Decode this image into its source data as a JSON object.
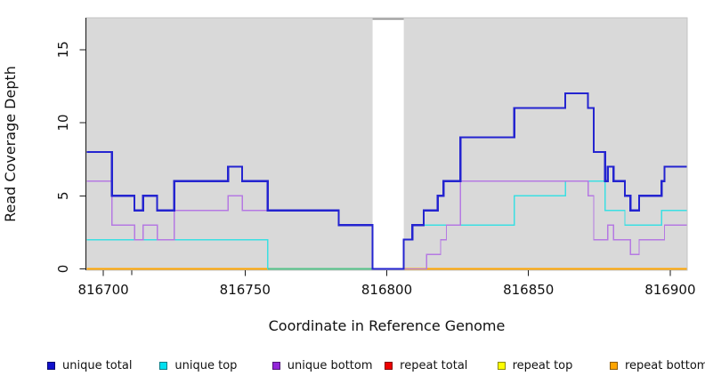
{
  "chart_data": {
    "type": "line",
    "step_mode": "post",
    "title": "",
    "xlabel": "Coordinate in Reference Genome",
    "ylabel": "Read Coverage Depth",
    "xlim": [
      816694,
      816906
    ],
    "ylim": [
      0,
      17.2
    ],
    "x_ticks": [
      "816700",
      "816750",
      "816800",
      "816850",
      "816900"
    ],
    "y_ticks": [
      "0",
      "5",
      "10",
      "15"
    ],
    "grid": false,
    "panel_background": "#D9D9D9",
    "panel_border_color": "#C3C3C3",
    "axis_color": "#1A1A1A",
    "gap_region": {
      "from": 816795,
      "to": 816806,
      "color": "#FFFFFF",
      "top_edge_color": "#909090"
    },
    "extra_gray_tick": {
      "x": 816710,
      "color": "#8C8C8C"
    },
    "baseline_overlay": {
      "from": 816758,
      "to": 816795,
      "y": 0,
      "color": "#55C389"
    },
    "draw_order": [
      "repeat total",
      "repeat top",
      "repeat bottom",
      "unique top",
      "unique bottom",
      "unique total"
    ],
    "series": [
      {
        "name": "unique total",
        "color": "#2424D0",
        "legend_color": "#1111CC",
        "line_width": 2.2,
        "steps": [
          [
            816694,
            8
          ],
          [
            816703,
            5
          ],
          [
            816711,
            4
          ],
          [
            816714,
            5
          ],
          [
            816719,
            4
          ],
          [
            816725,
            6
          ],
          [
            816744,
            7
          ],
          [
            816749,
            6
          ],
          [
            816758,
            4
          ],
          [
            816783,
            3
          ],
          [
            816795,
            0
          ],
          [
            816806,
            2
          ],
          [
            816809,
            3
          ],
          [
            816813,
            4
          ],
          [
            816818,
            5
          ],
          [
            816820,
            6
          ],
          [
            816826,
            9
          ],
          [
            816845,
            11
          ],
          [
            816863,
            12
          ],
          [
            816871,
            11
          ],
          [
            816873,
            8
          ],
          [
            816877,
            6
          ],
          [
            816878,
            7
          ],
          [
            816880,
            6
          ],
          [
            816884,
            5
          ],
          [
            816886,
            4
          ],
          [
            816889,
            5
          ],
          [
            816897,
            6
          ],
          [
            816898,
            7
          ]
        ]
      },
      {
        "name": "unique top",
        "color": "#3BDFE2",
        "legend_color": "#00E0F0",
        "line_width": 1.3,
        "steps": [
          [
            816694,
            2
          ],
          [
            816758,
            0
          ],
          [
            816806,
            2
          ],
          [
            816809,
            3
          ],
          [
            816845,
            5
          ],
          [
            816863,
            6
          ],
          [
            816877,
            4
          ],
          [
            816884,
            3
          ],
          [
            816897,
            4
          ]
        ]
      },
      {
        "name": "unique bottom",
        "color": "#B579E2",
        "legend_color": "#9327D9",
        "line_width": 1.3,
        "steps": [
          [
            816694,
            6
          ],
          [
            816703,
            3
          ],
          [
            816711,
            2
          ],
          [
            816714,
            3
          ],
          [
            816719,
            2
          ],
          [
            816725,
            4
          ],
          [
            816744,
            5
          ],
          [
            816749,
            4
          ],
          [
            816783,
            3
          ],
          [
            816795,
            0
          ],
          [
            816814,
            1
          ],
          [
            816819,
            2
          ],
          [
            816821,
            3
          ],
          [
            816826,
            6
          ],
          [
            816871,
            5
          ],
          [
            816873,
            2
          ],
          [
            816878,
            3
          ],
          [
            816880,
            2
          ],
          [
            816886,
            1
          ],
          [
            816889,
            2
          ],
          [
            816898,
            3
          ]
        ]
      },
      {
        "name": "repeat total",
        "color": "#EE0000",
        "legend_color": "#EE0000",
        "line_width": 1.3,
        "steps": [
          [
            816694,
            0
          ]
        ]
      },
      {
        "name": "repeat top",
        "color": "#FFFF00",
        "legend_color": "#FFFF00",
        "line_width": 1.3,
        "steps": [
          [
            816694,
            0
          ]
        ]
      },
      {
        "name": "repeat bottom",
        "color": "#FFA500",
        "legend_color": "#FFA500",
        "line_width": 1.6,
        "steps": [
          [
            816694,
            0
          ]
        ]
      }
    ]
  },
  "legend": {
    "items": [
      {
        "label": "unique total",
        "color": "#1111CC"
      },
      {
        "label": "unique top",
        "color": "#00E0F0"
      },
      {
        "label": "unique bottom",
        "color": "#9327D9"
      },
      {
        "label": "repeat total",
        "color": "#EE0000"
      },
      {
        "label": "repeat top",
        "color": "#FFFF00"
      },
      {
        "label": "repeat bottom",
        "color": "#FFA500"
      }
    ]
  }
}
